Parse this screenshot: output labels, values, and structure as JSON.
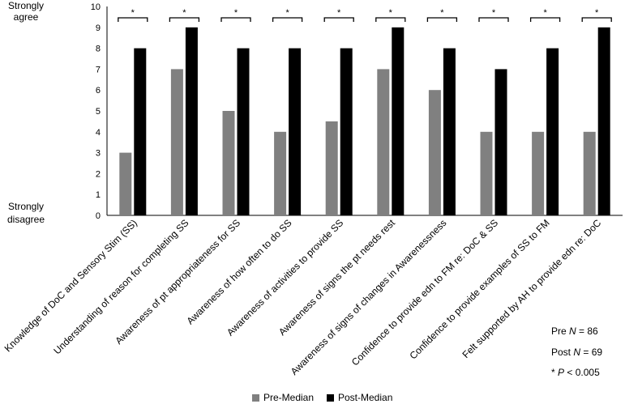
{
  "chart_data": {
    "type": "bar",
    "title": "",
    "xlabel": "",
    "ylabel": "",
    "ylim": [
      0,
      10
    ],
    "yticks": [
      0,
      1,
      2,
      3,
      4,
      5,
      6,
      7,
      8,
      9,
      10
    ],
    "y_end_labels": {
      "top": [
        "Strongly",
        "agree"
      ],
      "bottom": [
        "Strongly",
        "disagree"
      ]
    },
    "categories": [
      "Knowledge of DoC and Sensory Stim (SS)",
      "Understanding of reason for completing SS",
      "Awareness of pt appropriateness for SS",
      "Awareness of how often to do SS",
      "Awareness of activities to provide SS",
      "Awareness of signs the pt needs rest",
      "Awareness of signs of changes in Awarenessness",
      "Confidence to provide edn to FM re: DoC & SS",
      "Confidence to provide examples of SS to FM",
      "Felt supported by AH to provide edn re: DoC"
    ],
    "series": [
      {
        "name": "Pre-Median",
        "color": "#808080",
        "values": [
          3,
          7,
          5,
          4,
          4.5,
          7,
          6,
          4,
          4,
          4
        ]
      },
      {
        "name": "Post-Median",
        "color": "#000000",
        "values": [
          8,
          9,
          8,
          8,
          8,
          9,
          8,
          7,
          8,
          9
        ]
      }
    ],
    "significance_marker": "*",
    "legend_position": "bottom",
    "grid": false,
    "notes": {
      "pre_prefix": "Pre ",
      "pre_n_symbol": "N",
      "pre_n_value": " = 86",
      "post_prefix": "Post ",
      "post_n_symbol": "N",
      "post_n_value": " = 69",
      "p_prefix": "* ",
      "p_symbol": "P",
      "p_value": " < 0.005"
    }
  }
}
